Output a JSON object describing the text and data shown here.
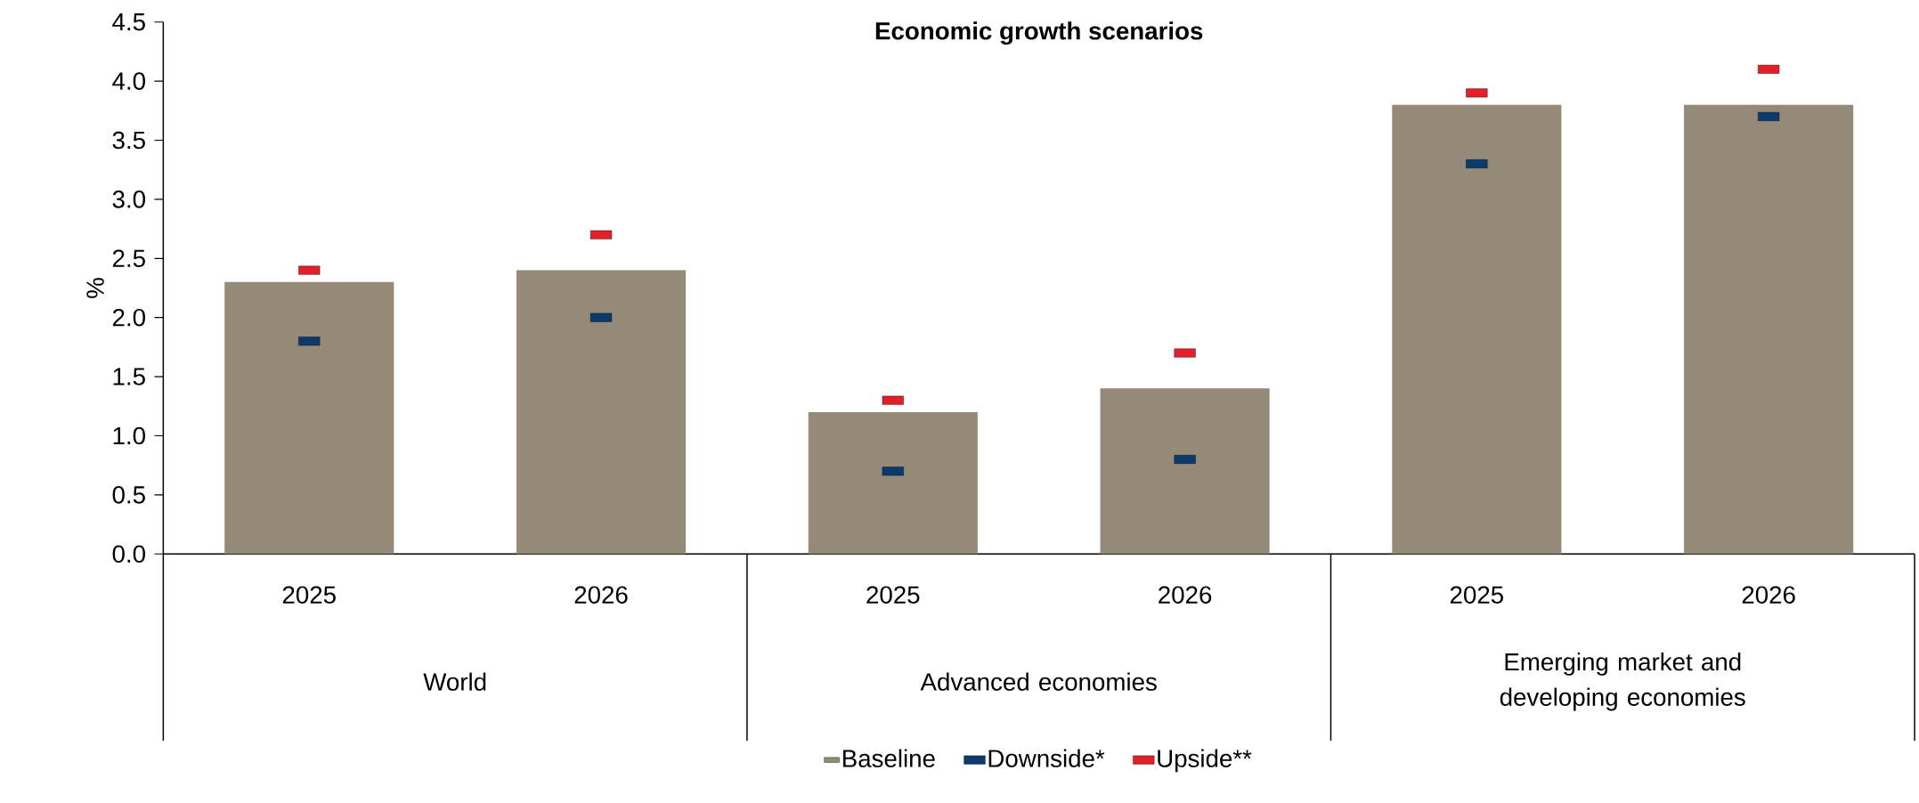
{
  "chart_data": {
    "type": "bar",
    "title": "Economic growth scenarios",
    "ylabel": "%",
    "categories": [
      "2025",
      "2026",
      "2025",
      "2026",
      "2025",
      "2026"
    ],
    "annotations": [
      "World",
      "Advanced economies",
      "Emerging market and developing economies"
    ],
    "series": [
      {
        "name": "Baseline",
        "type": "bar",
        "color": "#948a77",
        "values": [
          2.3,
          2.4,
          1.2,
          1.4,
          3.8,
          3.8
        ]
      },
      {
        "name": "Downside*",
        "type": "scatter",
        "marker": "square",
        "color": "#0b3a6e",
        "values": [
          1.8,
          2.0,
          0.7,
          0.8,
          3.3,
          3.7
        ]
      },
      {
        "name": "Upside**",
        "type": "scatter",
        "marker": "square",
        "color": "#e3202a",
        "values": [
          2.4,
          2.7,
          1.3,
          1.7,
          3.9,
          4.1
        ]
      }
    ],
    "ylim": [
      0,
      4.5
    ],
    "yticks": [
      {
        "value": 0,
        "label": "0.0"
      },
      {
        "value": 0.5,
        "label": "0.5"
      },
      {
        "value": 1,
        "label": "1.0"
      },
      {
        "value": 1.5,
        "label": "1.5"
      },
      {
        "value": 2,
        "label": "2.0"
      },
      {
        "value": 2.5,
        "label": "2.5"
      },
      {
        "value": 3,
        "label": "3.0"
      },
      {
        "value": 3.5,
        "label": "3.5"
      },
      {
        "value": 4,
        "label": "4.0"
      },
      {
        "value": 4.5,
        "label": "4.5"
      }
    ],
    "grid": false,
    "legend": "bottom"
  }
}
